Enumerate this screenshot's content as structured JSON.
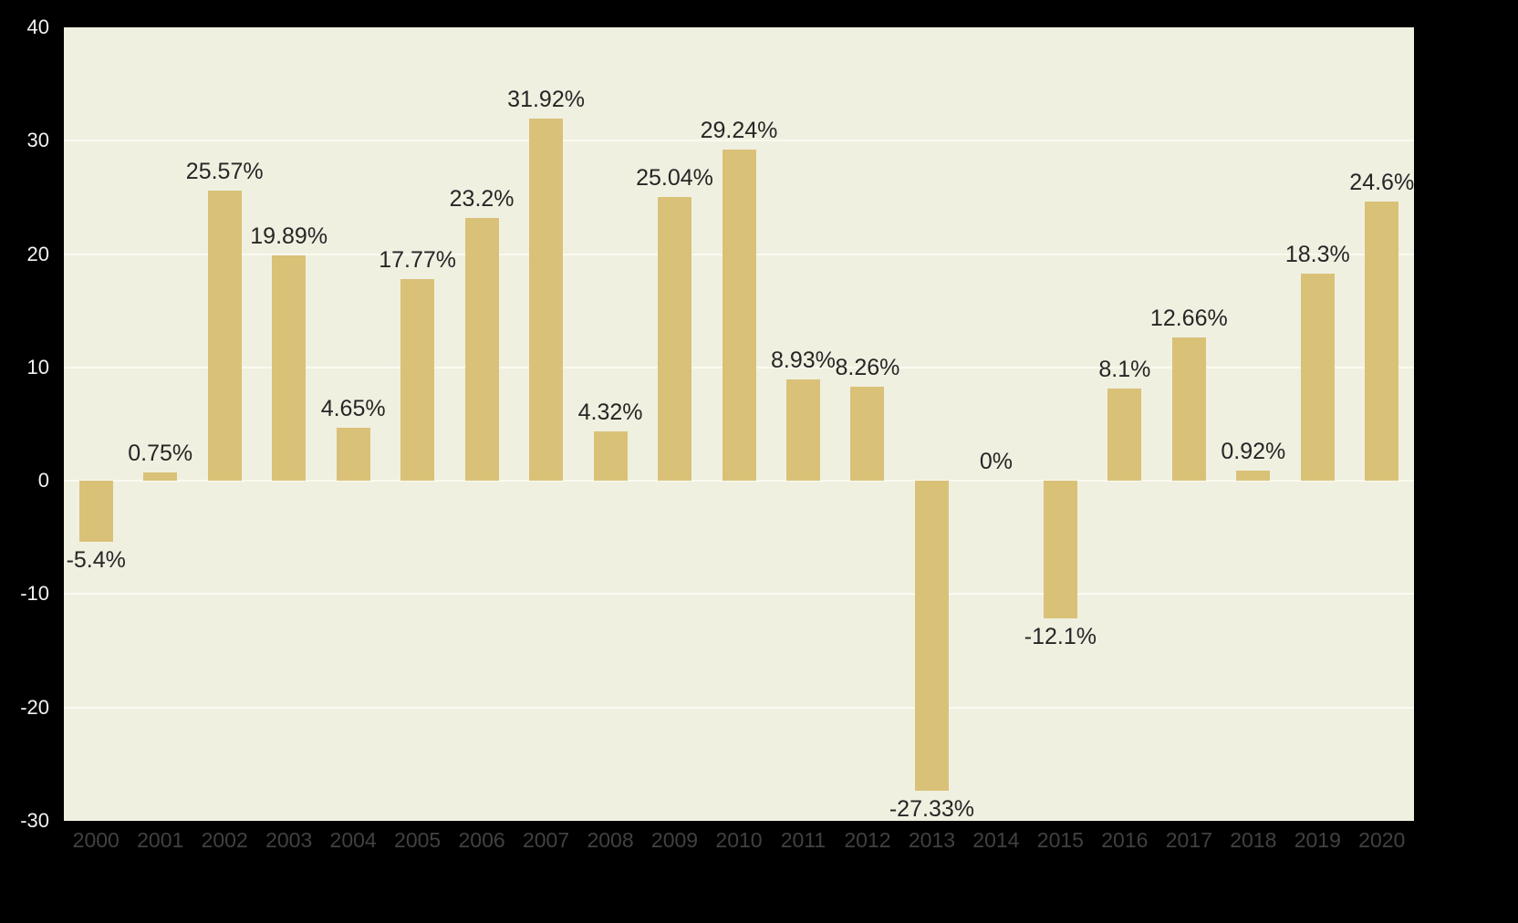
{
  "chart_data": {
    "type": "bar",
    "title": "",
    "xlabel": "",
    "ylabel": "",
    "categories": [
      "2000",
      "2001",
      "2002",
      "2003",
      "2004",
      "2005",
      "2006",
      "2007",
      "2008",
      "2009",
      "2010",
      "2011",
      "2012",
      "2013",
      "2014",
      "2015",
      "2016",
      "2017",
      "2018",
      "2019",
      "2020"
    ],
    "values": [
      -5.4,
      0.75,
      25.57,
      19.89,
      4.65,
      17.77,
      23.2,
      31.92,
      4.32,
      25.04,
      29.24,
      8.93,
      8.26,
      -27.33,
      0,
      -12.1,
      8.1,
      12.66,
      0.92,
      18.3,
      24.6
    ],
    "labels": [
      "-5.4%",
      "0.75%",
      "25.57%",
      "19.89%",
      "4.65%",
      "17.77%",
      "23.2%",
      "31.92%",
      "4.32%",
      "25.04%",
      "29.24%",
      "8.93%",
      "8.26%",
      "-27.33%",
      "0%",
      "-12.1%",
      "8.1%",
      "12.66%",
      "0.92%",
      "18.3%",
      "24.6%"
    ],
    "ylim": [
      -30,
      40
    ],
    "yticks": [
      40,
      30,
      20,
      10,
      0,
      -10,
      -20,
      -30
    ],
    "grid": "horizontal",
    "legend": false,
    "colors": {
      "bar": "#d9c178",
      "plot_background": "#f0f0e1",
      "page_background": "#000000",
      "gridline": "#fafaf0",
      "value_label": "#262626",
      "y_tick_label": "#f2f2f2",
      "x_tick_label": "#414141"
    }
  }
}
